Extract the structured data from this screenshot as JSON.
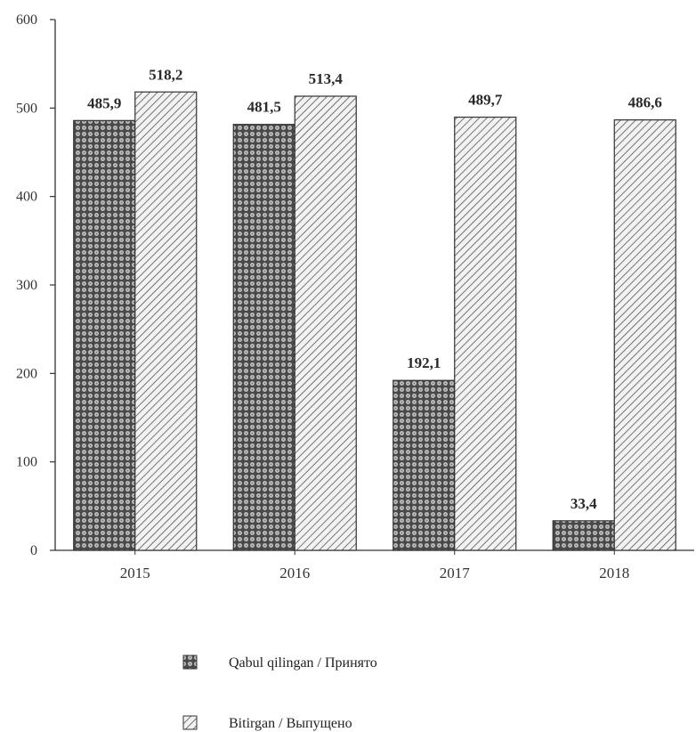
{
  "chart_data": {
    "type": "bar",
    "categories": [
      "2015",
      "2016",
      "2017",
      "2018"
    ],
    "series": [
      {
        "name": "Qabul qilingan / Принято",
        "values": [
          485.9,
          481.5,
          192.1,
          33.4
        ],
        "labels": [
          "485,9",
          "481,5",
          "192,1",
          "33,4"
        ]
      },
      {
        "name": "Bitirgan / Выпущено",
        "values": [
          518.2,
          513.4,
          489.7,
          486.6
        ],
        "labels": [
          "518,2",
          "513,4",
          "489,7",
          "486,6"
        ]
      }
    ],
    "ylim": [
      0,
      600
    ],
    "yticks": [
      0,
      100,
      200,
      300,
      400,
      500,
      600
    ],
    "grid": false,
    "legend_position": "bottom"
  }
}
